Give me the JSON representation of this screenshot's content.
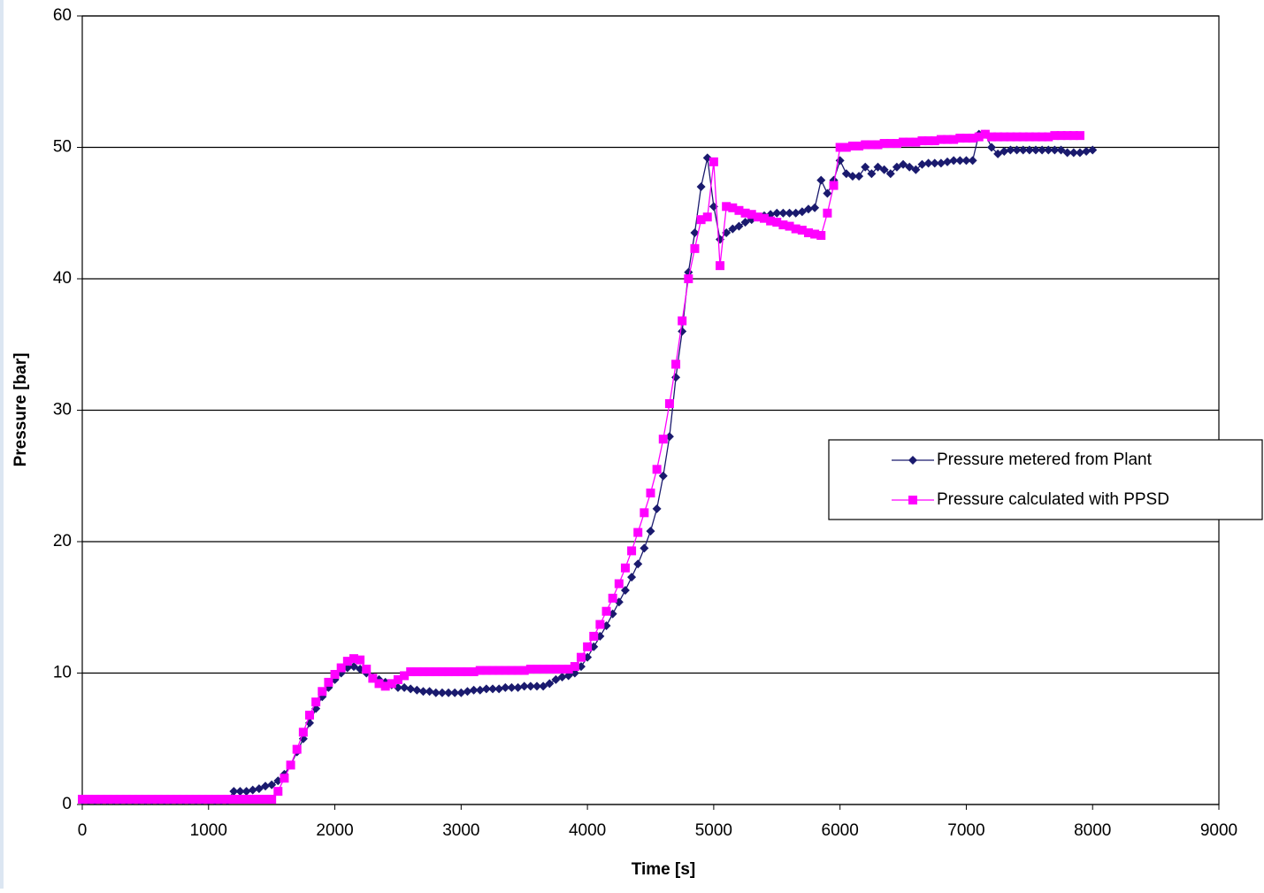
{
  "chart_data": {
    "type": "line",
    "xlabel": "Time  [s]",
    "ylabel": "Pressure [bar]",
    "x": [
      0,
      50,
      100,
      150,
      200,
      250,
      300,
      350,
      400,
      450,
      500,
      550,
      600,
      650,
      700,
      750,
      800,
      850,
      900,
      950,
      1000,
      1050,
      1100,
      1150,
      1200,
      1250,
      1300,
      1350,
      1400,
      1450,
      1500,
      1550,
      1600,
      1650,
      1700,
      1750,
      1800,
      1850,
      1900,
      1950,
      2000,
      2050,
      2100,
      2150,
      2200,
      2250,
      2300,
      2350,
      2400,
      2450,
      2500,
      2550,
      2600,
      2650,
      2700,
      2750,
      2800,
      2850,
      2900,
      2950,
      3000,
      3050,
      3100,
      3150,
      3200,
      3250,
      3300,
      3350,
      3400,
      3450,
      3500,
      3550,
      3600,
      3650,
      3700,
      3750,
      3800,
      3850,
      3900,
      3950,
      4000,
      4050,
      4100,
      4150,
      4200,
      4250,
      4300,
      4350,
      4400,
      4450,
      4500,
      4550,
      4600,
      4650,
      4700,
      4750,
      4800,
      4850,
      4900,
      4950,
      5000,
      5050,
      5100,
      5150,
      5200,
      5250,
      5300,
      5350,
      5400,
      5450,
      5500,
      5550,
      5600,
      5650,
      5700,
      5750,
      5800,
      5850,
      5900,
      5950,
      6000,
      6050,
      6100,
      6150,
      6200,
      6250,
      6300,
      6350,
      6400,
      6450,
      6500,
      6550,
      6600,
      6650,
      6700,
      6750,
      6800,
      6850,
      6900,
      6950,
      7000,
      7050,
      7100,
      7150,
      7200,
      7250,
      7300,
      7350,
      7400,
      7450,
      7500,
      7550,
      7600,
      7650,
      7700,
      7750,
      7800,
      7850,
      7900,
      7950,
      8000
    ],
    "series": [
      {
        "name": "Pressure metered from Plant",
        "color": "#1a1a6e",
        "marker": "diamond",
        "values": [
          0.3,
          0.3,
          0.3,
          0.3,
          0.3,
          0.3,
          0.3,
          0.3,
          0.3,
          0.3,
          0.3,
          0.3,
          0.3,
          0.3,
          0.3,
          0.3,
          0.3,
          0.3,
          0.3,
          0.3,
          0.3,
          0.3,
          0.3,
          0.3,
          1.0,
          1.0,
          1.0,
          1.1,
          1.2,
          1.4,
          1.5,
          1.8,
          2.3,
          3.0,
          4.0,
          5.0,
          6.2,
          7.3,
          8.2,
          8.9,
          9.5,
          10.0,
          10.4,
          10.5,
          10.3,
          10.0,
          9.7,
          9.5,
          9.3,
          9.1,
          8.9,
          8.9,
          8.8,
          8.7,
          8.6,
          8.6,
          8.5,
          8.5,
          8.5,
          8.5,
          8.5,
          8.6,
          8.7,
          8.7,
          8.8,
          8.8,
          8.8,
          8.9,
          8.9,
          8.9,
          9.0,
          9.0,
          9.0,
          9.0,
          9.2,
          9.5,
          9.7,
          9.8,
          10.0,
          10.5,
          11.2,
          12.0,
          12.8,
          13.6,
          14.5,
          15.4,
          16.3,
          17.3,
          18.3,
          19.5,
          20.8,
          22.5,
          25.0,
          28.0,
          32.5,
          36.0,
          40.5,
          43.5,
          47.0,
          49.2,
          45.5,
          43.0,
          43.5,
          43.8,
          44.0,
          44.3,
          44.5,
          44.7,
          44.8,
          44.9,
          45.0,
          45.0,
          45.0,
          45.0,
          45.1,
          45.3,
          45.4,
          47.5,
          46.5,
          47.5,
          49.0,
          48.0,
          47.8,
          47.8,
          48.5,
          48.0,
          48.5,
          48.3,
          48.0,
          48.5,
          48.7,
          48.5,
          48.3,
          48.7,
          48.8,
          48.8,
          48.8,
          48.9,
          49.0,
          49.0,
          49.0,
          49.0,
          51.0,
          51.0,
          50.0,
          49.5,
          49.7,
          49.8,
          49.8,
          49.8,
          49.8,
          49.8,
          49.8,
          49.8,
          49.8,
          49.8,
          49.6,
          49.6,
          49.6,
          49.7,
          49.8
        ]
      },
      {
        "name": "Pressure calculated with PPSD",
        "color": "#ff00ff",
        "marker": "square",
        "values": [
          0.4,
          0.4,
          0.4,
          0.4,
          0.4,
          0.4,
          0.4,
          0.4,
          0.4,
          0.4,
          0.4,
          0.4,
          0.4,
          0.4,
          0.4,
          0.4,
          0.4,
          0.4,
          0.4,
          0.4,
          0.4,
          0.4,
          0.4,
          0.4,
          0.4,
          0.4,
          0.4,
          0.4,
          0.4,
          0.4,
          0.4,
          1.0,
          2.0,
          3.0,
          4.2,
          5.5,
          6.8,
          7.8,
          8.6,
          9.3,
          9.9,
          10.4,
          10.9,
          11.1,
          11.0,
          10.3,
          9.6,
          9.2,
          9.0,
          9.2,
          9.5,
          9.8,
          10.1,
          10.1,
          10.1,
          10.1,
          10.1,
          10.1,
          10.1,
          10.1,
          10.1,
          10.1,
          10.1,
          10.2,
          10.2,
          10.2,
          10.2,
          10.2,
          10.2,
          10.2,
          10.2,
          10.3,
          10.3,
          10.3,
          10.3,
          10.3,
          10.3,
          10.3,
          10.5,
          11.2,
          12.0,
          12.8,
          13.7,
          14.7,
          15.7,
          16.8,
          18.0,
          19.3,
          20.7,
          22.2,
          23.7,
          25.5,
          27.8,
          30.5,
          33.5,
          36.8,
          40.0,
          42.3,
          44.5,
          44.7,
          48.9,
          41.0,
          45.5,
          45.4,
          45.2,
          45.0,
          44.9,
          44.7,
          44.6,
          44.4,
          44.3,
          44.1,
          44.0,
          43.8,
          43.7,
          43.5,
          43.4,
          43.3,
          45.0,
          47.1,
          50.0,
          50.0,
          50.1,
          50.1,
          50.2,
          50.2,
          50.2,
          50.3,
          50.3,
          50.3,
          50.4,
          50.4,
          50.4,
          50.5,
          50.5,
          50.5,
          50.6,
          50.6,
          50.6,
          50.7,
          50.7,
          50.7,
          50.8,
          51.0,
          50.8,
          50.8,
          50.8,
          50.8,
          50.8,
          50.8,
          50.8,
          50.8,
          50.8,
          50.8,
          50.9,
          50.9,
          50.9,
          50.9,
          50.9,
          null,
          null
        ]
      }
    ],
    "xlim": [
      0,
      9000
    ],
    "xticks": [
      0,
      1000,
      2000,
      3000,
      4000,
      5000,
      6000,
      7000,
      8000,
      9000
    ],
    "ylim": [
      0,
      60
    ],
    "yticks": [
      0,
      10,
      20,
      30,
      40,
      50,
      60
    ],
    "grid": true,
    "legend": "right"
  }
}
